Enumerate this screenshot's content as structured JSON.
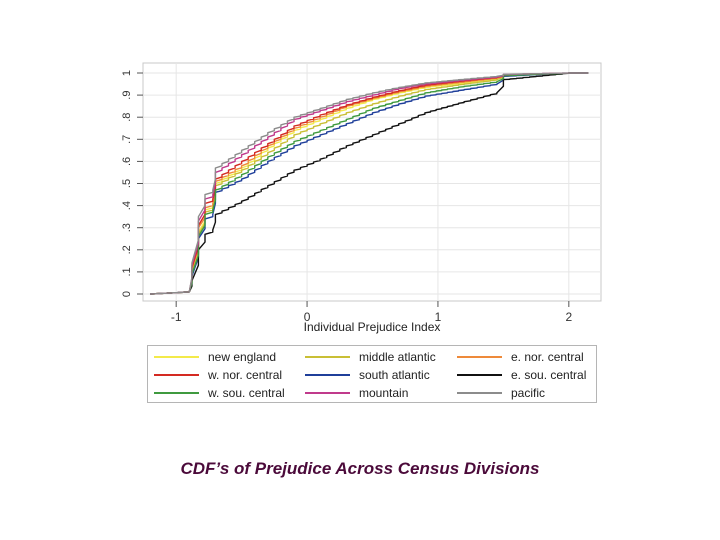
{
  "caption": "CDF’s of Prejudice Across Census Divisions",
  "chart_data": {
    "type": "line",
    "title": "",
    "xlabel": "Individual Prejudice Index",
    "ylabel": "",
    "xlim": [
      -1.2,
      2.2
    ],
    "ylim": [
      0,
      1
    ],
    "xticks": [
      "-1",
      "0",
      "1",
      "2"
    ],
    "yticks": [
      "0",
      ".1",
      ".2",
      ".3",
      ".4",
      ".5",
      ".6",
      ".7",
      ".8",
      ".9",
      "1"
    ],
    "grid": true,
    "legend_position": "bottom",
    "x": [
      -1.2,
      -0.9,
      -0.88,
      -0.83,
      -0.78,
      -0.72,
      -0.7,
      -0.5,
      -0.3,
      -0.1,
      0.1,
      0.3,
      0.5,
      0.7,
      0.9,
      1.2,
      1.45,
      1.5,
      1.75,
      2.0,
      2.15
    ],
    "series": [
      {
        "name": "new england",
        "color": "#f3ea4a",
        "values": [
          0,
          0.01,
          0.1,
          0.28,
          0.38,
          0.4,
          0.5,
          0.57,
          0.66,
          0.74,
          0.79,
          0.84,
          0.88,
          0.91,
          0.935,
          0.955,
          0.975,
          0.99,
          0.995,
          1,
          1
        ]
      },
      {
        "name": "middle atlantic",
        "color": "#c9bf35",
        "values": [
          0,
          0.01,
          0.09,
          0.27,
          0.37,
          0.39,
          0.49,
          0.56,
          0.64,
          0.72,
          0.77,
          0.82,
          0.86,
          0.895,
          0.925,
          0.95,
          0.97,
          0.99,
          0.995,
          1,
          1
        ]
      },
      {
        "name": "e. nor. central",
        "color": "#ee8a3a",
        "values": [
          0,
          0.01,
          0.11,
          0.3,
          0.39,
          0.41,
          0.51,
          0.58,
          0.67,
          0.75,
          0.8,
          0.85,
          0.885,
          0.915,
          0.94,
          0.96,
          0.978,
          0.99,
          0.995,
          1,
          1
        ]
      },
      {
        "name": "w. nor. central",
        "color": "#d42a22",
        "values": [
          0,
          0.01,
          0.12,
          0.31,
          0.41,
          0.43,
          0.52,
          0.6,
          0.68,
          0.76,
          0.81,
          0.855,
          0.89,
          0.92,
          0.945,
          0.965,
          0.98,
          0.992,
          0.996,
          1,
          1
        ]
      },
      {
        "name": "south atlantic",
        "color": "#1f3f9a",
        "values": [
          0,
          0.01,
          0.08,
          0.25,
          0.34,
          0.36,
          0.46,
          0.52,
          0.6,
          0.67,
          0.72,
          0.77,
          0.82,
          0.86,
          0.895,
          0.925,
          0.95,
          0.985,
          0.993,
          1,
          1
        ]
      },
      {
        "name": "e. sou. central",
        "color": "#111111",
        "values": [
          0,
          0.01,
          0.06,
          0.2,
          0.27,
          0.29,
          0.36,
          0.42,
          0.49,
          0.56,
          0.61,
          0.67,
          0.72,
          0.77,
          0.82,
          0.87,
          0.91,
          0.97,
          0.985,
          1,
          1
        ]
      },
      {
        "name": "w. sou. central",
        "color": "#3f9a3f",
        "values": [
          0,
          0.01,
          0.09,
          0.26,
          0.36,
          0.38,
          0.47,
          0.54,
          0.62,
          0.69,
          0.74,
          0.79,
          0.84,
          0.875,
          0.91,
          0.94,
          0.96,
          0.988,
          0.994,
          1,
          1
        ]
      },
      {
        "name": "mountain",
        "color": "#c03a8c",
        "values": [
          0,
          0.01,
          0.13,
          0.33,
          0.43,
          0.45,
          0.55,
          0.63,
          0.71,
          0.79,
          0.83,
          0.87,
          0.9,
          0.93,
          0.95,
          0.968,
          0.982,
          0.993,
          0.997,
          1,
          1
        ]
      },
      {
        "name": "pacific",
        "color": "#8c8c8c",
        "values": [
          0,
          0.01,
          0.14,
          0.35,
          0.45,
          0.47,
          0.57,
          0.65,
          0.73,
          0.8,
          0.84,
          0.88,
          0.91,
          0.935,
          0.955,
          0.972,
          0.985,
          0.994,
          0.997,
          1,
          1
        ]
      }
    ]
  }
}
